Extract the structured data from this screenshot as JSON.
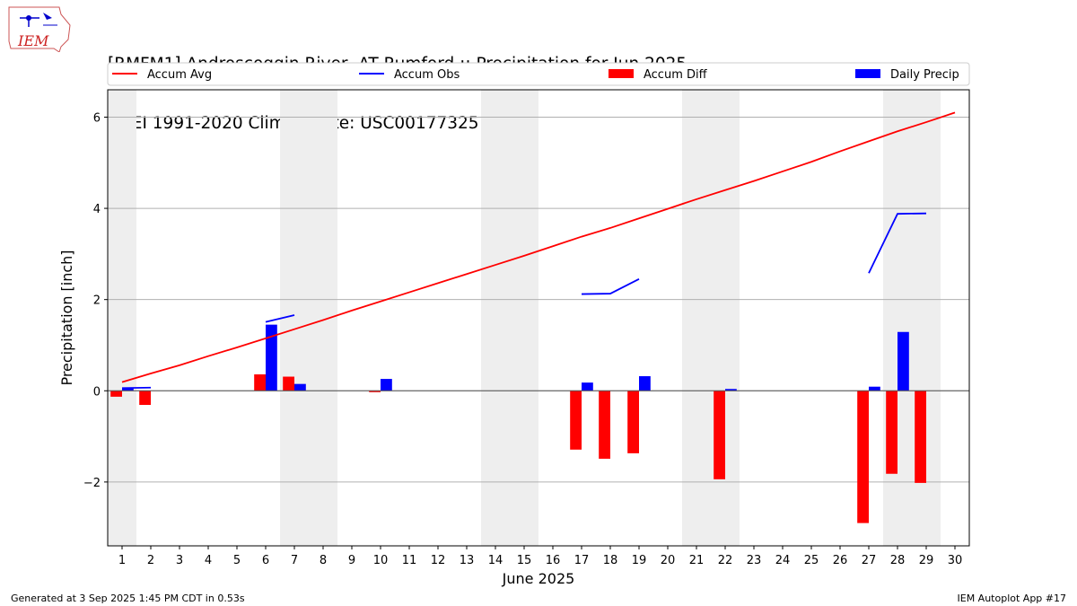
{
  "header": {
    "title_line1": "[RMFM1] Androscoggin River  AT Rumford :: Precipitation for Jun 2025",
    "title_line2": "NCEI 1991-2020 Climate Site: USC00177325",
    "logo_text": "IEM"
  },
  "footer": {
    "left": "Generated at 3 Sep 2025 1:45 PM CDT in 0.53s",
    "right": "IEM Autoplot App #17"
  },
  "colors": {
    "avg": "#ff0000",
    "obs": "#0000ff",
    "diff": "#ff0000",
    "daily": "#0000ff",
    "weekend_shade": "#eeeeee",
    "grid": "#b0b0b0"
  },
  "chart_data": {
    "type": "bar",
    "xlabel": "June 2025",
    "ylabel": "Precipitation [inch]",
    "xlim": [
      0.5,
      30.5
    ],
    "ylim": [
      -3.4,
      6.6
    ],
    "yticks": [
      -2,
      0,
      2,
      4,
      6
    ],
    "ytick_labels": [
      "−2",
      "0",
      "2",
      "4",
      "6"
    ],
    "days": [
      1,
      2,
      3,
      4,
      5,
      6,
      7,
      8,
      9,
      10,
      11,
      12,
      13,
      14,
      15,
      16,
      17,
      18,
      19,
      20,
      21,
      22,
      23,
      24,
      25,
      26,
      27,
      28,
      29,
      30
    ],
    "day_labels": [
      "1",
      "2",
      "3",
      "4",
      "5",
      "6",
      "7",
      "8",
      "9",
      "10",
      "11",
      "12",
      "13",
      "14",
      "15",
      "16",
      "17",
      "18",
      "19",
      "20",
      "21",
      "22",
      "23",
      "24",
      "25",
      "26",
      "27",
      "28",
      "29",
      "30"
    ],
    "weekend_shading": [
      [
        0.5,
        1.5
      ],
      [
        6.5,
        8.5
      ],
      [
        13.5,
        15.5
      ],
      [
        20.5,
        22.5
      ],
      [
        27.5,
        29.5
      ]
    ],
    "grid": "horizontal",
    "legend": {
      "placement": "top",
      "entries": [
        {
          "label": "Accum Avg",
          "kind": "line",
          "color": "#ff0000"
        },
        {
          "label": "Accum Obs",
          "kind": "line",
          "color": "#0000ff"
        },
        {
          "label": "Accum Diff",
          "kind": "patch",
          "color": "#ff0000"
        },
        {
          "label": "Daily Precip",
          "kind": "patch",
          "color": "#0000ff"
        }
      ]
    },
    "series": [
      {
        "name": "Accum Avg",
        "kind": "line",
        "values": [
          0.19,
          0.38,
          0.56,
          0.76,
          0.95,
          1.15,
          1.35,
          1.55,
          1.76,
          1.96,
          2.16,
          2.36,
          2.56,
          2.76,
          2.96,
          3.17,
          3.38,
          3.57,
          3.78,
          3.99,
          4.2,
          4.4,
          4.6,
          4.81,
          5.02,
          5.25,
          5.47,
          5.69,
          5.89,
          6.1
        ]
      },
      {
        "name": "Accum Obs",
        "kind": "line",
        "segments": [
          [
            [
              1,
              0.06
            ],
            [
              2,
              0.07
            ]
          ],
          [
            [
              6,
              1.51
            ],
            [
              7,
              1.66
            ]
          ],
          [
            [
              17,
              2.12
            ],
            [
              18,
              2.13
            ],
            [
              19,
              2.45
            ]
          ],
          [
            [
              27,
              2.58
            ],
            [
              28,
              3.88
            ],
            [
              29,
              3.89
            ]
          ]
        ]
      },
      {
        "name": "Accum Diff",
        "kind": "bar",
        "values": [
          -0.13,
          -0.31,
          0,
          0,
          0,
          0.36,
          0.31,
          0,
          0,
          -0.03,
          0,
          0,
          0,
          0,
          0,
          0,
          -1.29,
          -1.49,
          -1.37,
          0,
          0,
          -1.94,
          0,
          0,
          0,
          0,
          -2.9,
          -1.82,
          -2.02,
          0
        ]
      },
      {
        "name": "Daily Precip",
        "kind": "bar",
        "values": [
          0.06,
          0,
          0,
          0,
          0,
          1.45,
          0.15,
          0,
          0,
          0.26,
          0,
          0,
          0,
          0,
          0,
          0,
          0.18,
          0,
          0.32,
          0,
          0,
          0.04,
          0,
          0,
          0,
          0,
          0.09,
          1.29,
          0,
          0
        ]
      }
    ]
  }
}
